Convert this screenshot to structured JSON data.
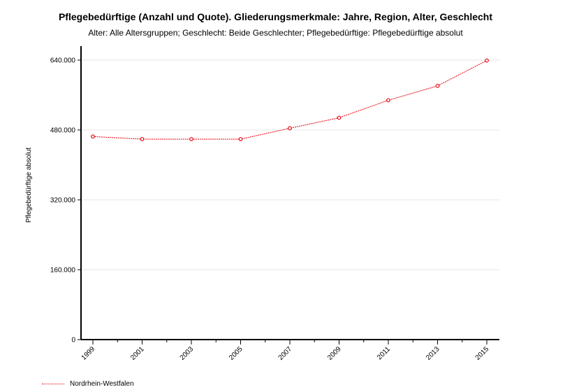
{
  "title": "Pflegebedürftige (Anzahl und Quote). Gliederungsmerkmale: Jahre, Region, Alter, Geschlecht",
  "subtitle": "Alter: Alle Altersgruppen; Geschlecht: Beide Geschlechter; Pflegebedürftige: Pflegebedürftige absolut",
  "legend_label": "Nordrhein-Westfalen",
  "series_color": "#e8000b",
  "chart_data": {
    "type": "line",
    "title": "Pflegebedürftige (Anzahl und Quote). Gliederungsmerkmale: Jahre, Region, Alter, Geschlecht",
    "subtitle": "Alter: Alle Altersgruppen; Geschlecht: Beide Geschlechter; Pflegebedürftige: Pflegebedürftige absolut",
    "xlabel": "",
    "ylabel": "Pflegebedürftige absolut",
    "categories": [
      "1999",
      "2001",
      "2003",
      "2005",
      "2007",
      "2009",
      "2011",
      "2013",
      "2015"
    ],
    "ylim": [
      0,
      640000
    ],
    "yticks": [
      0,
      160000,
      320000,
      480000,
      640000
    ],
    "ytick_labels": [
      "0",
      "160.000",
      "320.000",
      "480.000",
      "640.000"
    ],
    "grid": true,
    "legend_position": "bottom-left",
    "series": [
      {
        "name": "Nordrhein-Westfalen",
        "values": [
          465000,
          459000,
          459000,
          459000,
          484000,
          508000,
          548000,
          581000,
          639000
        ]
      }
    ]
  }
}
